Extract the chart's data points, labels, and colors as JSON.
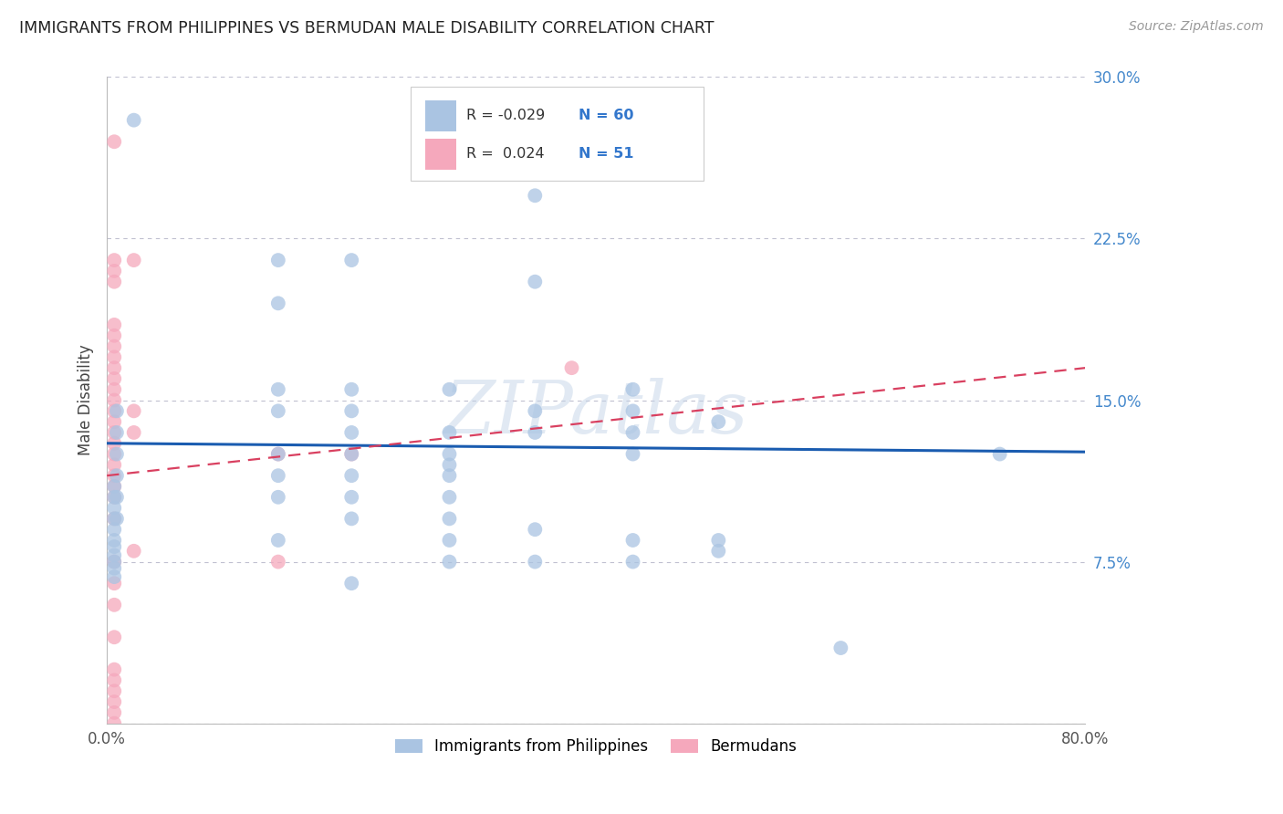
{
  "title": "IMMIGRANTS FROM PHILIPPINES VS BERMUDAN MALE DISABILITY CORRELATION CHART",
  "source": "Source: ZipAtlas.com",
  "ylabel": "Male Disability",
  "xlim": [
    0.0,
    0.8
  ],
  "ylim": [
    0.0,
    0.3
  ],
  "ytick_vals": [
    0.0,
    0.075,
    0.15,
    0.225,
    0.3
  ],
  "ytick_labels": [
    "",
    "7.5%",
    "15.0%",
    "22.5%",
    "30.0%"
  ],
  "xtick_vals": [
    0.0,
    0.1,
    0.2,
    0.3,
    0.4,
    0.5,
    0.6,
    0.7,
    0.8
  ],
  "xtick_labels": [
    "0.0%",
    "",
    "",
    "",
    "",
    "",
    "",
    "",
    "80.0%"
  ],
  "watermark": "ZIPatlas",
  "blue_color": "#aac4e2",
  "pink_color": "#f5a8bc",
  "blue_line_color": "#1a5cb0",
  "pink_line_color": "#d94060",
  "legend_label1": "Immigrants from Philippines",
  "legend_label2": "Bermudans",
  "blue_R": -0.029,
  "blue_N": 60,
  "pink_R": 0.024,
  "pink_N": 51,
  "blue_scatter_x": [
    0.022,
    0.008,
    0.008,
    0.008,
    0.008,
    0.008,
    0.008,
    0.006,
    0.006,
    0.006,
    0.006,
    0.006,
    0.006,
    0.006,
    0.006,
    0.006,
    0.006,
    0.006,
    0.14,
    0.14,
    0.14,
    0.14,
    0.14,
    0.14,
    0.14,
    0.14,
    0.2,
    0.2,
    0.2,
    0.2,
    0.2,
    0.2,
    0.2,
    0.2,
    0.2,
    0.28,
    0.28,
    0.28,
    0.28,
    0.28,
    0.28,
    0.28,
    0.28,
    0.28,
    0.35,
    0.35,
    0.35,
    0.35,
    0.35,
    0.35,
    0.43,
    0.43,
    0.43,
    0.43,
    0.43,
    0.43,
    0.5,
    0.5,
    0.5,
    0.73,
    0.6
  ],
  "blue_scatter_y": [
    0.28,
    0.145,
    0.135,
    0.125,
    0.115,
    0.105,
    0.095,
    0.11,
    0.105,
    0.1,
    0.095,
    0.09,
    0.085,
    0.082,
    0.078,
    0.075,
    0.072,
    0.068,
    0.215,
    0.195,
    0.155,
    0.145,
    0.125,
    0.115,
    0.105,
    0.085,
    0.215,
    0.155,
    0.145,
    0.135,
    0.125,
    0.115,
    0.105,
    0.095,
    0.065,
    0.155,
    0.135,
    0.125,
    0.12,
    0.115,
    0.105,
    0.095,
    0.085,
    0.075,
    0.245,
    0.205,
    0.145,
    0.135,
    0.09,
    0.075,
    0.155,
    0.145,
    0.135,
    0.125,
    0.085,
    0.075,
    0.14,
    0.085,
    0.08,
    0.125,
    0.035
  ],
  "pink_scatter_x": [
    0.006,
    0.006,
    0.006,
    0.006,
    0.006,
    0.006,
    0.006,
    0.006,
    0.006,
    0.006,
    0.006,
    0.006,
    0.006,
    0.006,
    0.006,
    0.006,
    0.006,
    0.006,
    0.006,
    0.006,
    0.006,
    0.006,
    0.006,
    0.006,
    0.006,
    0.006,
    0.006,
    0.006,
    0.006,
    0.006,
    0.006,
    0.022,
    0.022,
    0.022,
    0.022,
    0.14,
    0.14,
    0.2,
    0.38,
    0.006
  ],
  "pink_scatter_y": [
    0.27,
    0.215,
    0.21,
    0.205,
    0.185,
    0.18,
    0.175,
    0.17,
    0.165,
    0.16,
    0.155,
    0.15,
    0.145,
    0.14,
    0.135,
    0.13,
    0.125,
    0.12,
    0.115,
    0.11,
    0.105,
    0.075,
    0.065,
    0.055,
    0.04,
    0.025,
    0.02,
    0.015,
    0.01,
    0.005,
    0.0,
    0.215,
    0.145,
    0.135,
    0.08,
    0.125,
    0.075,
    0.125,
    0.165,
    0.095
  ],
  "blue_line_x0": 0.0,
  "blue_line_x1": 0.8,
  "blue_line_y0": 0.13,
  "blue_line_y1": 0.126,
  "pink_line_x0": 0.0,
  "pink_line_x1": 0.8,
  "pink_line_y0": 0.115,
  "pink_line_y1": 0.165
}
